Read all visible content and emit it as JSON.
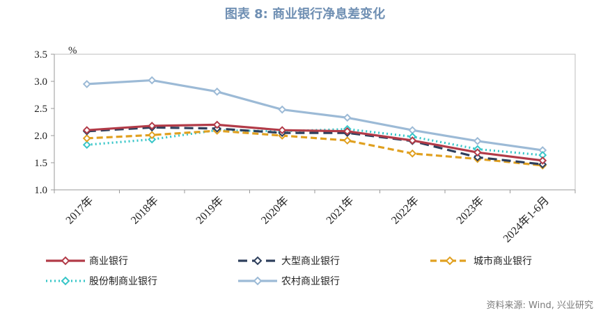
{
  "title": "图表 8:  商业银行净息差变化",
  "source": "资料来源: Wind, 兴业研究",
  "chart_data": {
    "type": "line",
    "title": "图表 8:  商业银行净息差变化",
    "ylabel": "%",
    "ylim": [
      1.0,
      3.5
    ],
    "yticks": [
      "1.0",
      "1.5",
      "2.0",
      "2.5",
      "3.0",
      "3.5"
    ],
    "categories": [
      "2017年",
      "2018年",
      "2019年",
      "2020年",
      "2021年",
      "2022年",
      "2023年",
      "2024年1-6月"
    ],
    "grid": "none",
    "legend_position": "bottom",
    "series": [
      {
        "name": "商业银行",
        "values": [
          2.1,
          2.18,
          2.2,
          2.1,
          2.08,
          1.91,
          1.69,
          1.54
        ],
        "color": "#b23b48",
        "style": "solid"
      },
      {
        "name": "大型商业银行",
        "values": [
          2.08,
          2.15,
          2.13,
          2.05,
          2.05,
          1.9,
          1.6,
          1.47
        ],
        "color": "#2e3f5c",
        "style": "longdash"
      },
      {
        "name": "城市商业银行",
        "values": [
          1.95,
          2.01,
          2.09,
          2.0,
          1.91,
          1.67,
          1.57,
          1.45
        ],
        "color": "#e0a020",
        "style": "dash"
      },
      {
        "name": "股份制商业银行",
        "values": [
          1.83,
          1.93,
          2.1,
          2.08,
          2.12,
          1.98,
          1.75,
          1.64
        ],
        "color": "#38c6c8",
        "style": "dot"
      },
      {
        "name": "农村商业银行",
        "values": [
          2.95,
          3.02,
          2.81,
          2.48,
          2.33,
          2.1,
          1.9,
          1.73
        ],
        "color": "#9cbad6",
        "style": "solid"
      }
    ]
  }
}
